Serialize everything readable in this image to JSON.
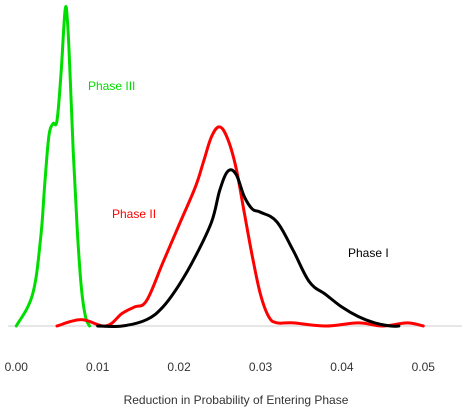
{
  "chart_data": {
    "type": "line",
    "title": "",
    "xlabel": "Reduction in Probability of Entering Phase",
    "ylabel": "",
    "xlim": [
      -0.002,
      0.055
    ],
    "ylim": [
      0,
      1
    ],
    "x_ticks": [
      "0.00",
      "0.01",
      "0.02",
      "0.03",
      "0.04",
      "0.05"
    ],
    "x_tick_values": [
      0.0,
      0.01,
      0.02,
      0.03,
      0.04,
      0.05
    ],
    "grid": false,
    "legend": "none",
    "series": [
      {
        "name": "Phase III",
        "color": "#00dd00",
        "x": [
          0.0,
          0.002,
          0.003,
          0.0035,
          0.004,
          0.0045,
          0.005,
          0.0055,
          0.006,
          0.0063,
          0.0066,
          0.007,
          0.0075,
          0.008,
          0.0085,
          0.009
        ],
        "y": [
          0.0,
          0.1,
          0.28,
          0.45,
          0.6,
          0.64,
          0.65,
          0.8,
          1.0,
          0.96,
          0.8,
          0.55,
          0.3,
          0.12,
          0.03,
          0.0
        ]
      },
      {
        "name": "Phase II",
        "color": "#ff0000",
        "x": [
          0.005,
          0.008,
          0.011,
          0.013,
          0.0145,
          0.016,
          0.018,
          0.02,
          0.022,
          0.023,
          0.024,
          0.025,
          0.026,
          0.027,
          0.028,
          0.029,
          0.03,
          0.031,
          0.032,
          0.034,
          0.038,
          0.042,
          0.045,
          0.048,
          0.05
        ],
        "y": [
          0.0,
          0.02,
          0.0,
          0.04,
          0.06,
          0.08,
          0.2,
          0.32,
          0.44,
          0.52,
          0.6,
          0.63,
          0.59,
          0.5,
          0.36,
          0.22,
          0.1,
          0.03,
          0.01,
          0.01,
          0.0,
          0.01,
          0.0,
          0.01,
          0.0
        ]
      },
      {
        "name": "Phase I",
        "color": "#000000",
        "x": [
          0.01,
          0.013,
          0.016,
          0.018,
          0.02,
          0.022,
          0.024,
          0.025,
          0.026,
          0.027,
          0.028,
          0.029,
          0.03,
          0.032,
          0.034,
          0.036,
          0.038,
          0.04,
          0.042,
          0.044,
          0.046,
          0.047
        ],
        "y": [
          0.0,
          0.0,
          0.02,
          0.06,
          0.13,
          0.22,
          0.33,
          0.43,
          0.49,
          0.48,
          0.41,
          0.37,
          0.36,
          0.33,
          0.24,
          0.14,
          0.1,
          0.06,
          0.03,
          0.01,
          0.0,
          0.0
        ]
      }
    ],
    "annotations": [
      {
        "text": "Phase III",
        "series": "Phase III"
      },
      {
        "text": "Phase II",
        "series": "Phase II"
      },
      {
        "text": "Phase I",
        "series": "Phase I"
      }
    ]
  }
}
